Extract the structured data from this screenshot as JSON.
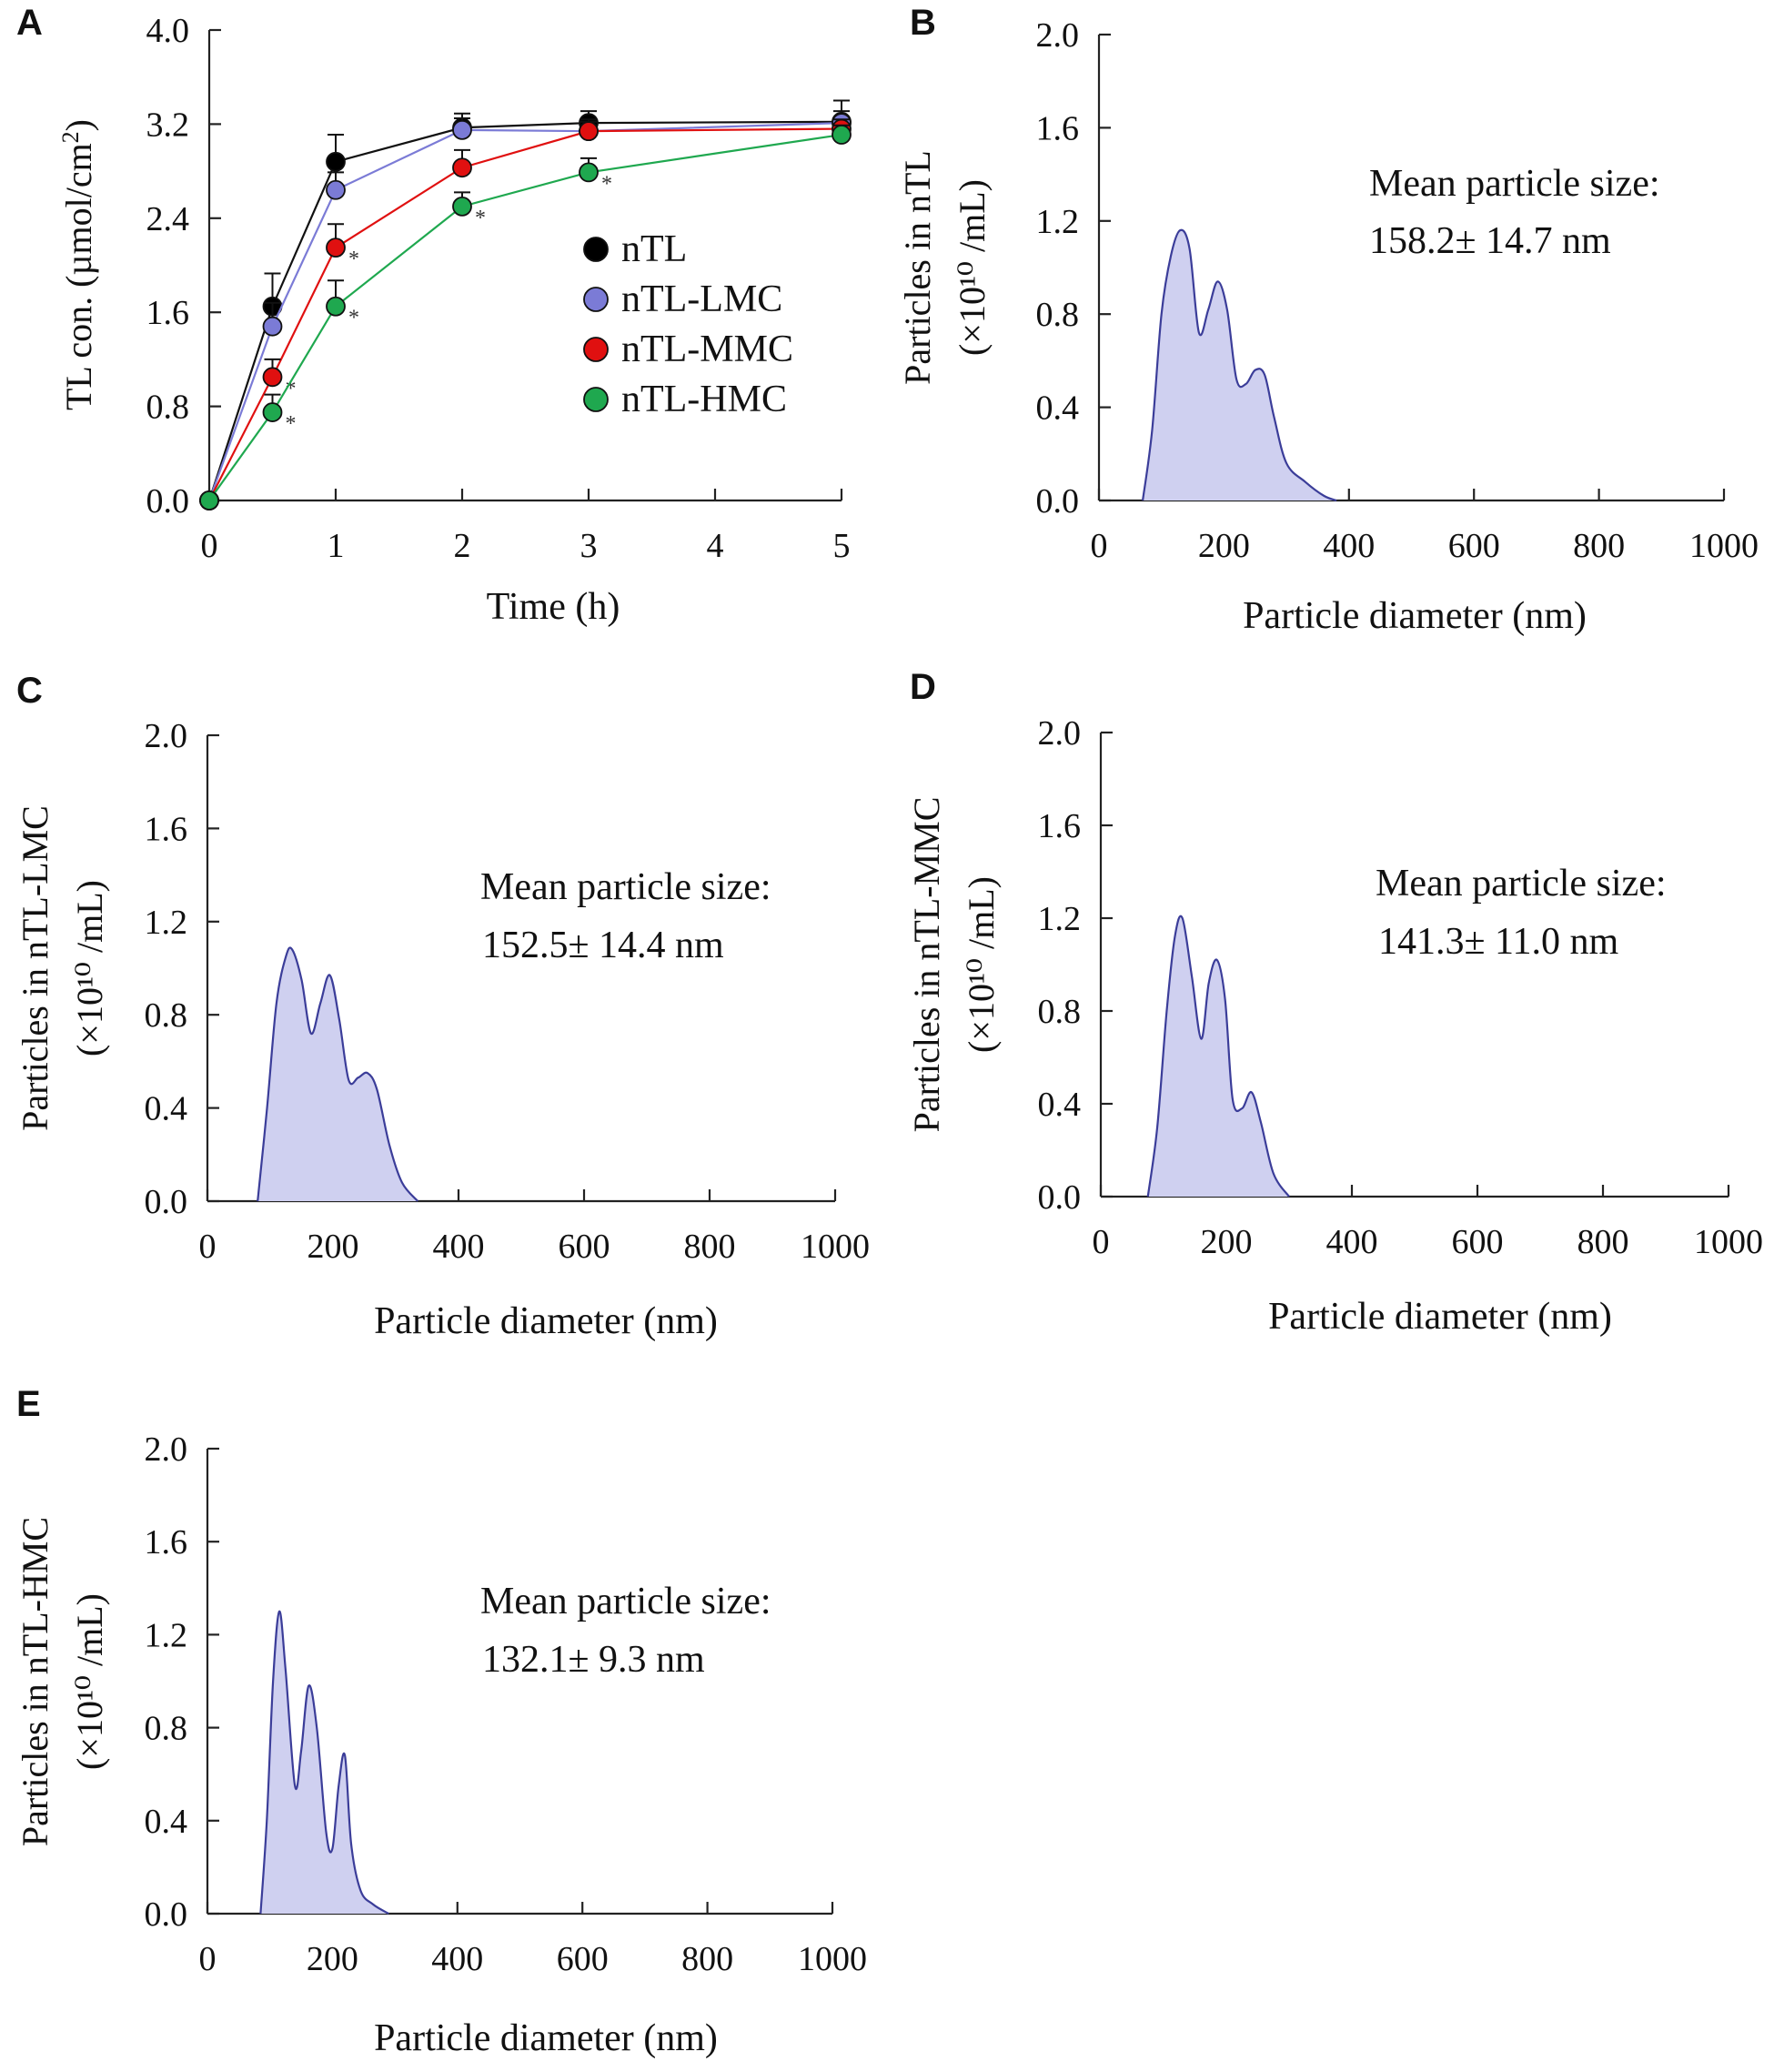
{
  "figure": {
    "panels": [
      "A",
      "B",
      "C",
      "D",
      "E"
    ]
  },
  "chart_data": [
    {
      "panel": "A",
      "type": "line",
      "xlabel": "Time (h)",
      "ylabel": "TL con. (µmol/cm²)",
      "ylabel_main": "TL con. (µmol/cm",
      "ylabel_sup": "2",
      "ylabel_end": ")",
      "xlim": [
        0,
        5
      ],
      "ylim": [
        0,
        4
      ],
      "xticks": [
        0,
        1,
        2,
        3,
        4,
        5
      ],
      "yticks": [
        0.0,
        0.8,
        1.6,
        2.4,
        3.2,
        4.0
      ],
      "x": [
        0,
        0.5,
        1,
        2,
        3,
        5
      ],
      "legend_position": "center-right",
      "series": [
        {
          "name": "nTL",
          "color": "#000000",
          "values": [
            0,
            1.65,
            2.88,
            3.17,
            3.21,
            3.22
          ],
          "errors": [
            0,
            0.28,
            0.23,
            0.12,
            0.1,
            0.18
          ],
          "significant": [
            false,
            false,
            false,
            false,
            false,
            false
          ]
        },
        {
          "name": "nTL-LMC",
          "color": "#7b7bd6",
          "values": [
            0,
            1.48,
            2.64,
            3.15,
            3.14,
            3.21
          ],
          "errors": [
            0,
            0.2,
            0.15,
            0.1,
            0.1,
            0.1
          ],
          "significant": [
            false,
            false,
            false,
            false,
            false,
            false
          ]
        },
        {
          "name": "nTL-MMC",
          "color": "#e01010",
          "values": [
            0,
            1.05,
            2.15,
            2.83,
            3.14,
            3.16
          ],
          "errors": [
            0,
            0.15,
            0.2,
            0.15,
            0.08,
            0.08
          ],
          "significant": [
            false,
            true,
            true,
            false,
            false,
            false
          ]
        },
        {
          "name": "nTL-HMC",
          "color": "#1fa84f",
          "values": [
            0,
            0.75,
            1.65,
            2.5,
            2.79,
            3.11
          ],
          "errors": [
            0,
            0.15,
            0.22,
            0.12,
            0.12,
            0.08
          ],
          "significant": [
            false,
            true,
            true,
            true,
            true,
            false
          ]
        }
      ],
      "sig_marker": "*"
    },
    {
      "panel": "B",
      "type": "area",
      "xlabel": "Particle diameter (nm)",
      "ylabel_line1": "Particles in nTL",
      "ylabel_line2": "(×10¹⁰ /mL)",
      "xlim": [
        0,
        1000
      ],
      "ylim": [
        0,
        2
      ],
      "xticks": [
        0,
        200,
        400,
        600,
        800,
        1000
      ],
      "yticks": [
        0.0,
        0.4,
        0.8,
        1.2,
        1.6,
        2.0
      ],
      "x": [
        70,
        85,
        100,
        115,
        130,
        145,
        160,
        175,
        190,
        205,
        220,
        235,
        250,
        265,
        280,
        300,
        330,
        360,
        380
      ],
      "y": [
        0,
        0.3,
        0.8,
        1.05,
        1.16,
        1.08,
        0.72,
        0.82,
        0.94,
        0.82,
        0.52,
        0.5,
        0.56,
        0.54,
        0.36,
        0.16,
        0.08,
        0.02,
        0
      ],
      "annotation_line1": "Mean particle size:",
      "annotation_line2": "158.2± 14.7 nm",
      "fill": "#cfd0f0",
      "stroke": "#3b3d99"
    },
    {
      "panel": "C",
      "type": "area",
      "xlabel": "Particle diameter (nm)",
      "ylabel_line1": "Particles in nTL-LMC",
      "ylabel_line2": "(×10¹⁰ /mL)",
      "xlim": [
        0,
        1000
      ],
      "ylim": [
        0,
        2
      ],
      "xticks": [
        0,
        200,
        400,
        600,
        800,
        1000
      ],
      "yticks": [
        0.0,
        0.4,
        0.8,
        1.2,
        1.6,
        2.0
      ],
      "x": [
        80,
        95,
        110,
        125,
        135,
        150,
        165,
        180,
        195,
        210,
        225,
        240,
        255,
        270,
        290,
        310,
        335
      ],
      "y": [
        0,
        0.4,
        0.85,
        1.05,
        1.08,
        0.95,
        0.72,
        0.85,
        0.97,
        0.78,
        0.52,
        0.53,
        0.55,
        0.48,
        0.24,
        0.08,
        0
      ],
      "annotation_line1": "Mean particle size:",
      "annotation_line2": "152.5± 14.4 nm",
      "fill": "#cfd0f0",
      "stroke": "#3b3d99"
    },
    {
      "panel": "D",
      "type": "area",
      "xlabel": "Particle diameter (nm)",
      "ylabel_line1": "Particles in nTL-MMC",
      "ylabel_line2": "(×10¹⁰ /mL)",
      "xlim": [
        0,
        1000
      ],
      "ylim": [
        0,
        2
      ],
      "xticks": [
        0,
        200,
        400,
        600,
        800,
        1000
      ],
      "yticks": [
        0.0,
        0.4,
        0.8,
        1.2,
        1.6,
        2.0
      ],
      "x": [
        75,
        90,
        105,
        118,
        130,
        145,
        160,
        172,
        185,
        198,
        210,
        225,
        240,
        255,
        275,
        300
      ],
      "y": [
        0,
        0.3,
        0.8,
        1.12,
        1.2,
        0.95,
        0.68,
        0.92,
        1.02,
        0.85,
        0.42,
        0.38,
        0.45,
        0.32,
        0.1,
        0
      ],
      "annotation_line1": "Mean particle size:",
      "annotation_line2": "141.3± 11.0 nm",
      "fill": "#cfd0f0",
      "stroke": "#3b3d99"
    },
    {
      "panel": "E",
      "type": "area",
      "xlabel": "Particle diameter (nm)",
      "ylabel_line1": "Particles in nTL-HMC",
      "ylabel_line2": "(×10¹⁰ /mL)",
      "xlim": [
        0,
        1000
      ],
      "ylim": [
        0,
        2
      ],
      "xticks": [
        0,
        200,
        400,
        600,
        800,
        1000
      ],
      "yticks": [
        0.0,
        0.4,
        0.8,
        1.2,
        1.6,
        2.0
      ],
      "x": [
        85,
        95,
        105,
        115,
        125,
        140,
        150,
        162,
        175,
        190,
        200,
        210,
        220,
        230,
        245,
        265,
        290
      ],
      "y": [
        0,
        0.4,
        1.0,
        1.3,
        1.05,
        0.55,
        0.7,
        0.98,
        0.8,
        0.35,
        0.28,
        0.55,
        0.68,
        0.3,
        0.1,
        0.04,
        0
      ],
      "annotation_line1": "Mean particle size:",
      "annotation_line2": "132.1± 9.3 nm",
      "fill": "#cfd0f0",
      "stroke": "#3b3d99"
    }
  ]
}
